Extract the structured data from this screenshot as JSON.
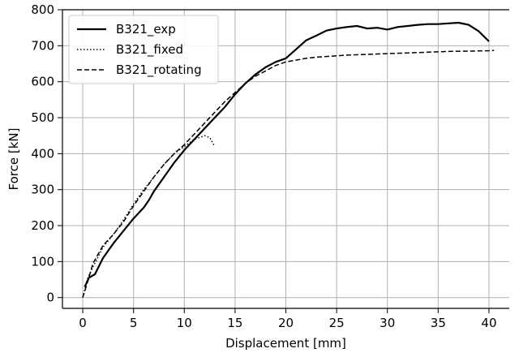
{
  "chart_data": {
    "type": "line",
    "xlabel": "Displacement [mm]",
    "ylabel": "Force [kN]",
    "xlim": [
      -2,
      42
    ],
    "ylim": [
      -30,
      800
    ],
    "xticks": [
      0,
      5,
      10,
      15,
      20,
      25,
      30,
      35,
      40
    ],
    "yticks": [
      0,
      100,
      200,
      300,
      400,
      500,
      600,
      700,
      800
    ],
    "grid": true,
    "legend_position": "top-left",
    "series": [
      {
        "name": "B321_exp",
        "style": "solid",
        "color": "#000000",
        "x": [
          0.2,
          0.6,
          1.2,
          2,
          3,
          4,
          5,
          6,
          6.5,
          7,
          8,
          9,
          10,
          11,
          12,
          13,
          14,
          15,
          16,
          17,
          18,
          19,
          20,
          21,
          22,
          23,
          24,
          25,
          26,
          27,
          28,
          29,
          30,
          31,
          32,
          33,
          34,
          35,
          36,
          37,
          38,
          39,
          40
        ],
        "y": [
          30,
          55,
          65,
          110,
          150,
          185,
          220,
          250,
          270,
          295,
          335,
          375,
          410,
          440,
          470,
          500,
          530,
          565,
          595,
          620,
          640,
          655,
          665,
          690,
          715,
          728,
          742,
          748,
          752,
          755,
          748,
          750,
          745,
          752,
          755,
          758,
          760,
          760,
          762,
          764,
          758,
          740,
          712
        ]
      },
      {
        "name": "B321_fixed",
        "style": "dotted",
        "color": "#000000",
        "x": [
          0,
          0.5,
          1,
          2,
          3,
          4,
          5,
          6,
          7,
          8,
          9,
          10,
          11,
          12,
          12.5,
          13
        ],
        "y": [
          0,
          55,
          85,
          140,
          175,
          215,
          260,
          300,
          335,
          370,
          400,
          420,
          440,
          450,
          445,
          420
        ]
      },
      {
        "name": "B321_rotating",
        "style": "dashed",
        "color": "#000000",
        "x": [
          0,
          0.5,
          1,
          2,
          3,
          4,
          5,
          6,
          7,
          8,
          9,
          10,
          11,
          12,
          13,
          14,
          15,
          16,
          17,
          18,
          19,
          20,
          21,
          22,
          23,
          24,
          25,
          26,
          28,
          30,
          32,
          34,
          36,
          38,
          40,
          40.5
        ],
        "y": [
          0,
          45,
          95,
          145,
          175,
          210,
          255,
          295,
          335,
          370,
          400,
          425,
          455,
          485,
          515,
          545,
          570,
          595,
          615,
          630,
          645,
          655,
          660,
          665,
          668,
          670,
          672,
          674,
          676,
          678,
          680,
          682,
          684,
          685,
          686,
          687
        ]
      }
    ]
  }
}
